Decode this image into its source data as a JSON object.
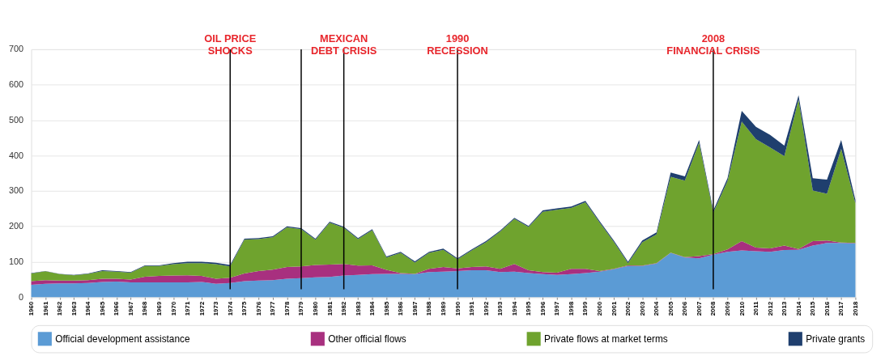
{
  "chart_data": {
    "type": "area",
    "stacked": true,
    "categories": [
      "1960",
      "1961",
      "1962",
      "1963",
      "1964",
      "1965",
      "1966",
      "1967",
      "1968",
      "1969",
      "1970",
      "1971",
      "1972",
      "1973",
      "1974",
      "1975",
      "1976",
      "1977",
      "1978",
      "1979",
      "1980",
      "1981",
      "1982",
      "1983",
      "1984",
      "1985",
      "1986",
      "1987",
      "1988",
      "1989",
      "1990",
      "1991",
      "1992",
      "1993",
      "1994",
      "1995",
      "1996",
      "1997",
      "1998",
      "1999",
      "2000",
      "2001",
      "2002",
      "2003",
      "2004",
      "2005",
      "2006",
      "2007",
      "2008",
      "2009",
      "2010",
      "2011",
      "2012",
      "2013",
      "2014",
      "2015",
      "2016",
      "2017",
      "2018"
    ],
    "series": [
      {
        "name": "Official development assistance",
        "color": "#5b9bd5",
        "values": [
          35,
          38,
          39,
          39,
          40,
          43,
          44,
          42,
          42,
          42,
          42,
          42,
          43,
          38,
          40,
          45,
          47,
          48,
          52,
          54,
          56,
          57,
          61,
          63,
          65,
          66,
          66,
          65,
          71,
          72,
          74,
          76,
          76,
          71,
          72,
          68,
          65,
          63,
          65,
          68,
          72,
          79,
          88,
          88,
          95,
          125,
          112,
          110,
          120,
          128,
          132,
          130,
          128,
          133,
          134,
          146,
          153,
          153,
          152
        ]
      },
      {
        "name": "Other official flows",
        "color": "#a8307f",
        "values": [
          10,
          10,
          8,
          8,
          8,
          9,
          8,
          8,
          16,
          18,
          19,
          20,
          17,
          14,
          15,
          22,
          27,
          30,
          33,
          33,
          35,
          35,
          33,
          26,
          25,
          11,
          2,
          1,
          9,
          13,
          7,
          9,
          11,
          9,
          22,
          8,
          6,
          6,
          15,
          12,
          2,
          1,
          2,
          1,
          1,
          1,
          1,
          6,
          2,
          7,
          26,
          10,
          10,
          13,
          2,
          12,
          7,
          1,
          1
        ]
      },
      {
        "name": "Private flows at market terms",
        "color": "#6fa32e",
        "values": [
          22,
          25,
          18,
          15,
          18,
          22,
          20,
          19,
          30,
          28,
          32,
          34,
          36,
          41,
          32,
          95,
          90,
          91,
          112,
          105,
          71,
          118,
          102,
          75,
          99,
          35,
          57,
          32,
          45,
          49,
          26,
          47,
          68,
          105,
          127,
          122,
          170,
          178,
          172,
          188,
          137,
          76,
          6,
          66,
          81,
          214,
          216,
          320,
          117,
          193,
          338,
          306,
          285,
          252,
          422,
          143,
          132,
          265,
          112
        ]
      },
      {
        "name": "Private grants",
        "color": "#1f3f6e",
        "values": [
          1,
          1,
          1,
          1,
          1,
          2,
          2,
          2,
          2,
          2,
          3,
          4,
          4,
          4,
          4,
          3,
          3,
          3,
          3,
          3,
          3,
          3,
          3,
          3,
          3,
          3,
          3,
          3,
          3,
          3,
          3,
          3,
          3,
          3,
          3,
          3,
          4,
          4,
          4,
          4,
          4,
          4,
          4,
          5,
          6,
          12,
          12,
          8,
          6,
          8,
          30,
          35,
          35,
          30,
          12,
          35,
          40,
          25,
          10
        ]
      }
    ],
    "ylim": [
      0,
      700
    ],
    "yticks": [
      0,
      100,
      200,
      300,
      400,
      500,
      600,
      700
    ],
    "grid": "y",
    "legend": "bottom",
    "ref_lines": [
      {
        "axis": "x",
        "value": "1974",
        "label": "OIL PRICE\nSHOCKS",
        "color": "#000000"
      },
      {
        "axis": "x",
        "value": "1979",
        "label": null,
        "color": "#000000"
      },
      {
        "axis": "x",
        "value": "1982",
        "label": "MEXICAN\nDEBT CRISIS",
        "color": "#000000"
      },
      {
        "axis": "x",
        "value": "1990",
        "label": "1990\nRECESSION",
        "color": "#000000"
      },
      {
        "axis": "x",
        "value": "2008",
        "label": "2008\nFINANCIAL CRISIS",
        "color": "#000000"
      }
    ]
  }
}
